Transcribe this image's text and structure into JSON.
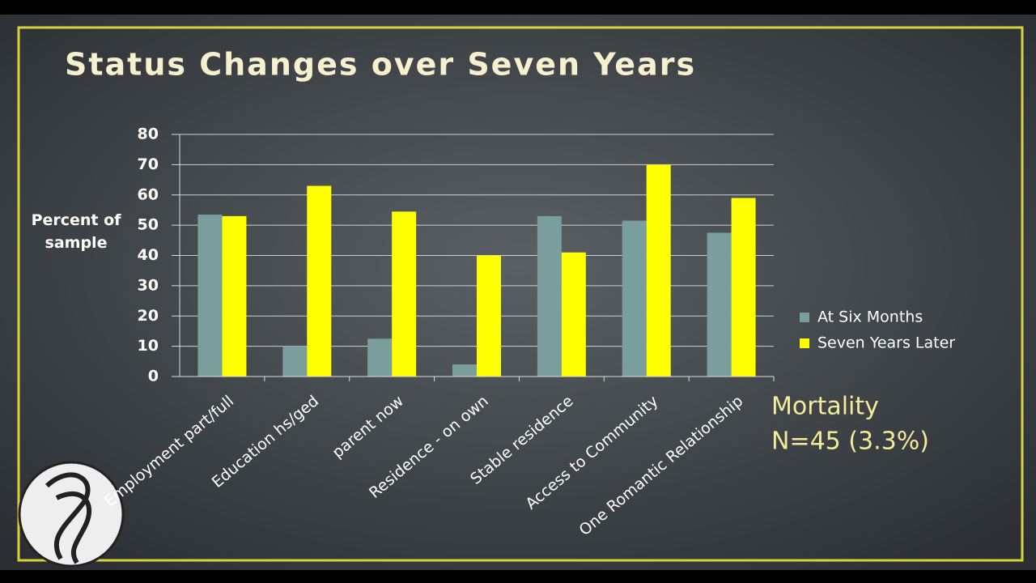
{
  "chart_data": {
    "type": "bar",
    "title": "Status Changes over Seven Years",
    "y_label": "Percent of sample",
    "categories": [
      "Employment part/full",
      "Education hs/ged",
      "parent now",
      "Residence - on own",
      "Stable residence",
      "Access to Community",
      "One Romantic Relationship"
    ],
    "series": [
      {
        "name": "At Six Months",
        "color": "#7a9e9b",
        "values": [
          53.5,
          10,
          12.5,
          4,
          53,
          51.5,
          47.5
        ]
      },
      {
        "name": "Seven Years Later",
        "color": "#ffff00",
        "values": [
          53,
          63,
          54.5,
          40,
          41,
          70,
          59
        ]
      }
    ],
    "ylim": [
      0,
      80
    ],
    "yticks": [
      0,
      10,
      20,
      30,
      40,
      50,
      60,
      70,
      80
    ],
    "grid": true,
    "annotations": [
      "Mortality",
      "N=45 (3.3%)"
    ]
  }
}
